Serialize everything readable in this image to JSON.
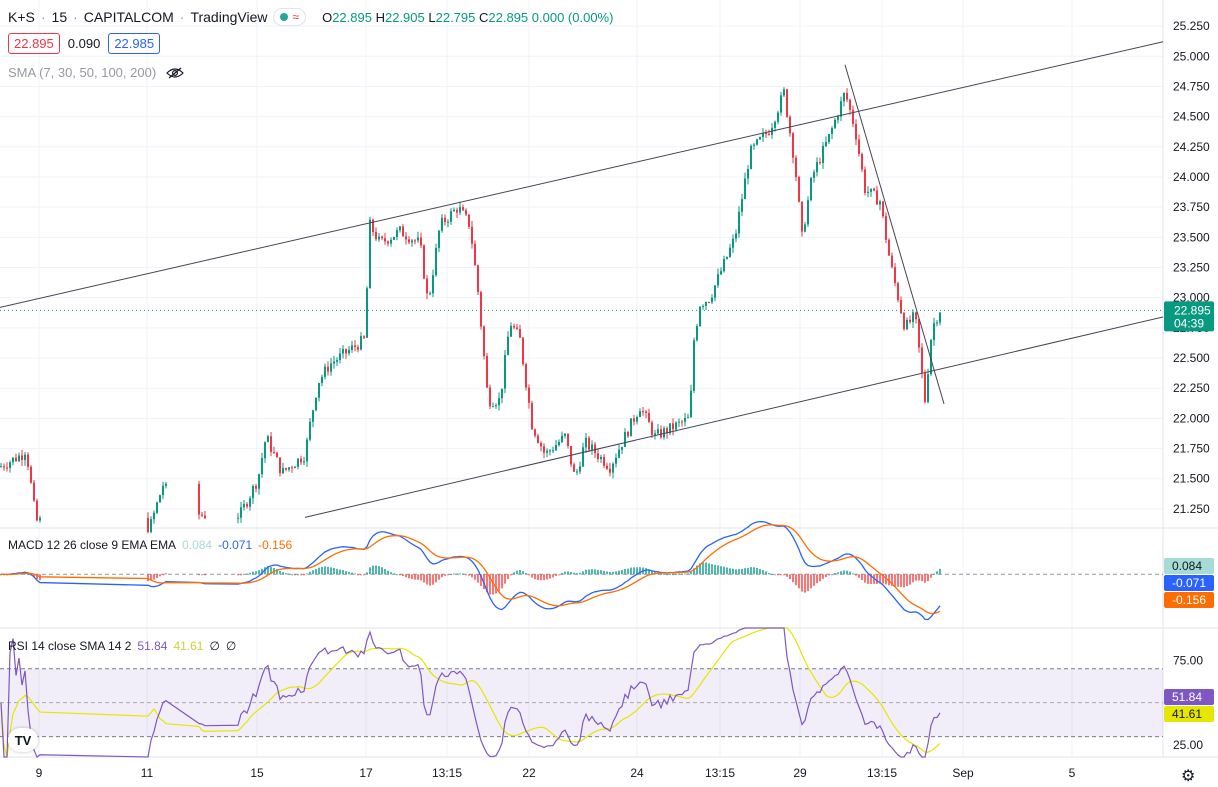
{
  "header": {
    "symbol": "K+S",
    "interval": "15",
    "exchange": "CAPITALCOM",
    "source": "TradingView",
    "ohlc": {
      "o_label": "O",
      "o": "22.895",
      "h_label": "H",
      "h": "22.905",
      "l_label": "L",
      "l": "22.795",
      "c_label": "C",
      "c": "22.895",
      "change": "0.000 (0.00%)"
    }
  },
  "quote": {
    "bid": "22.895",
    "spread": "0.090",
    "ask": "22.985"
  },
  "sma": {
    "label": "SMA (7, 30, 50, 100, 200)"
  },
  "macd": {
    "label": "MACD 12 26 close 9 EMA EMA",
    "hist": "0.084",
    "macd": "-0.071",
    "signal": "-0.156"
  },
  "rsi": {
    "label": "RSI 14 close SMA 14 2",
    "rsi": "51.84",
    "sma": "41.61",
    "extra1": "∅",
    "extra2": "∅"
  },
  "price_axis": [
    "25.250",
    "25.000",
    "24.750",
    "24.500",
    "24.250",
    "24.000",
    "23.750",
    "23.500",
    "23.250",
    "23.000",
    "22.750",
    "22.500",
    "22.250",
    "22.000",
    "21.750",
    "21.500",
    "21.250"
  ],
  "rsi_axis": [
    "75.00",
    "25.00"
  ],
  "time_axis": [
    "9",
    "11",
    "15",
    "17",
    "13:15",
    "22",
    "24",
    "13:15",
    "29",
    "13:15",
    "Sep",
    "5"
  ],
  "last_price": {
    "value": "22.895",
    "countdown": "04:39"
  },
  "colors": {
    "up": "#089981",
    "down": "#f23645",
    "macd": "#2962ff",
    "signal": "#ff6d00",
    "rsi": "#7e57c2",
    "rsi_sma": "#e6e600",
    "accent": "#2962ff"
  },
  "chart_data": {
    "type": "candlestick",
    "ylim": [
      21.1,
      25.4
    ],
    "control_points": [
      [
        0,
        21.6
      ],
      [
        22,
        21.7
      ],
      [
        26,
        21.75
      ],
      [
        36,
        21.15
      ],
      [
        150,
        21.1
      ],
      [
        163,
        21.45
      ],
      [
        175,
        21.3
      ],
      [
        200,
        21.2
      ],
      [
        240,
        21.2
      ],
      [
        258,
        21.5
      ],
      [
        266,
        21.85
      ],
      [
        282,
        21.55
      ],
      [
        305,
        21.7
      ],
      [
        310,
        21.95
      ],
      [
        318,
        22.3
      ],
      [
        330,
        22.45
      ],
      [
        364,
        22.65
      ],
      [
        366,
        22.9
      ],
      [
        370,
        23.6
      ],
      [
        380,
        23.45
      ],
      [
        400,
        23.55
      ],
      [
        420,
        23.45
      ],
      [
        428,
        22.95
      ],
      [
        440,
        23.6
      ],
      [
        458,
        23.75
      ],
      [
        470,
        23.6
      ],
      [
        478,
        23.05
      ],
      [
        488,
        22.15
      ],
      [
        500,
        22.15
      ],
      [
        510,
        22.8
      ],
      [
        520,
        22.65
      ],
      [
        532,
        21.95
      ],
      [
        545,
        21.7
      ],
      [
        565,
        21.85
      ],
      [
        575,
        21.5
      ],
      [
        585,
        21.8
      ],
      [
        610,
        21.6
      ],
      [
        625,
        21.85
      ],
      [
        640,
        22.1
      ],
      [
        655,
        21.85
      ],
      [
        690,
        22.0
      ],
      [
        693,
        22.6
      ],
      [
        700,
        22.95
      ],
      [
        710,
        23.0
      ],
      [
        735,
        23.5
      ],
      [
        750,
        24.2
      ],
      [
        770,
        24.4
      ],
      [
        784,
        24.7
      ],
      [
        795,
        24.1
      ],
      [
        802,
        23.5
      ],
      [
        812,
        24.0
      ],
      [
        830,
        24.35
      ],
      [
        845,
        24.7
      ],
      [
        855,
        24.4
      ],
      [
        865,
        23.9
      ],
      [
        880,
        23.8
      ],
      [
        890,
        23.3
      ],
      [
        905,
        22.75
      ],
      [
        915,
        22.85
      ],
      [
        925,
        22.15
      ],
      [
        932,
        22.75
      ],
      [
        940,
        22.9
      ]
    ],
    "trendlines": [
      {
        "name": "channel-top",
        "from": [
          0,
          22.92
        ],
        "to": [
          1163,
          25.12
        ]
      },
      {
        "name": "channel-bottom",
        "from": [
          305,
          21.18
        ],
        "to": [
          1163,
          22.84
        ]
      },
      {
        "name": "descending",
        "from": [
          845,
          24.93
        ],
        "to": [
          944,
          22.12
        ]
      }
    ],
    "macd_ylim": [
      -0.42,
      0.36
    ],
    "rsi_ylim": [
      18,
      94
    ],
    "rsi_bands": [
      30,
      70
    ]
  }
}
